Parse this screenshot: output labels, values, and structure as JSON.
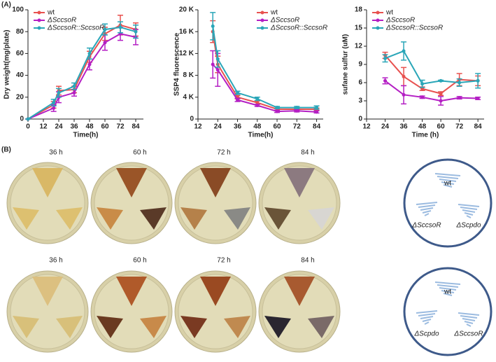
{
  "panels": [
    "(A)",
    "(B)"
  ],
  "chart_data": [
    {
      "type": "line",
      "y_label": "Dry weight(mg/plate)",
      "x_label": "Time(h)",
      "xlim": [
        0,
        90
      ],
      "xticks": [
        0,
        12,
        24,
        36,
        48,
        60,
        72,
        84
      ],
      "ylim": [
        0,
        100
      ],
      "yticks": [
        0,
        20,
        40,
        60,
        80,
        100
      ],
      "legend": "top-left",
      "x": [
        0,
        20,
        24,
        36,
        48,
        60,
        72,
        84
      ],
      "series": [
        {
          "name": "wt",
          "color": "#e8514f",
          "values": [
            0,
            13,
            26,
            27,
            57,
            78,
            86,
            82
          ],
          "errors": [
            0,
            3,
            4,
            3,
            5,
            6,
            9,
            6
          ]
        },
        {
          "name": "ΔSccsoR",
          "color": "#b41fc4",
          "values": [
            0,
            10,
            20,
            24,
            50,
            70,
            78,
            75
          ],
          "errors": [
            0,
            3,
            5,
            3,
            5,
            7,
            6,
            7
          ]
        },
        {
          "name": "ΔSccsoR::SccsoR",
          "color": "#2aa6b8",
          "values": [
            0,
            15,
            24,
            30,
            60,
            82,
            84,
            80
          ],
          "errors": [
            0,
            3,
            4,
            3,
            5,
            5,
            5,
            6
          ]
        }
      ]
    },
    {
      "type": "line",
      "y_label": "SSP4 fluorescence",
      "x_label": "Time(h)",
      "xlim": [
        12,
        88
      ],
      "xticks": [
        12,
        24,
        36,
        48,
        60,
        72,
        84
      ],
      "ylim": [
        0,
        20000
      ],
      "yticks": [
        0,
        {
          "value": 4000,
          "label": "4 K"
        },
        {
          "value": 8000,
          "label": "8 K"
        },
        {
          "value": 12000,
          "label": "12 K"
        },
        {
          "value": 16000,
          "label": "16 K"
        },
        {
          "value": 20000,
          "label": "20 K"
        }
      ],
      "legend": "top-right",
      "x": [
        21,
        24,
        36,
        48,
        60,
        72,
        84
      ],
      "series": [
        {
          "name": "wt",
          "color": "#e8514f",
          "values": [
            16000,
            10000,
            4000,
            3000,
            1800,
            1800,
            1800
          ],
          "errors": [
            2000,
            1500,
            300,
            300,
            200,
            200,
            200
          ]
        },
        {
          "name": "ΔSccsoR",
          "color": "#b41fc4",
          "values": [
            10000,
            9000,
            3500,
            2500,
            1400,
            1500,
            1300
          ],
          "errors": [
            2500,
            3000,
            300,
            200,
            200,
            200,
            200
          ]
        },
        {
          "name": "ΔSccsoR::SccsoR",
          "color": "#2aa6b8",
          "values": [
            17000,
            11000,
            4800,
            3700,
            2100,
            2100,
            2100
          ],
          "errors": [
            2500,
            1500,
            300,
            300,
            200,
            200,
            300
          ]
        }
      ]
    },
    {
      "type": "line",
      "y_label": "sufane sulfur (uM)",
      "x_label": "Time (h)",
      "xlim": [
        12,
        88
      ],
      "xticks": [
        12,
        24,
        36,
        48,
        60,
        72,
        84
      ],
      "ylim": [
        0,
        18
      ],
      "yticks": [
        0,
        3,
        6,
        9,
        12,
        15,
        18
      ],
      "legend": "top-left",
      "x": [
        24,
        36,
        48,
        60,
        72,
        84
      ],
      "series": [
        {
          "name": "wt",
          "color": "#e8514f",
          "values": [
            10.5,
            7,
            5,
            4.2,
            6.5,
            6.3
          ],
          "errors": [
            0.5,
            1.5,
            0.3,
            0.3,
            1,
            0.8
          ]
        },
        {
          "name": "ΔSccsoR",
          "color": "#b41fc4",
          "values": [
            6.3,
            4,
            3.6,
            3,
            3.5,
            3.4
          ],
          "errors": [
            0.5,
            1.5,
            0.2,
            0.7,
            0.2,
            0.2
          ]
        },
        {
          "name": "ΔSccsoR::SccsoR",
          "color": "#2aa6b8",
          "values": [
            10,
            11.2,
            5.8,
            6.3,
            6,
            6.3
          ],
          "errors": [
            0.6,
            1.5,
            0.6,
            0.1,
            0.6,
            1.2
          ]
        }
      ]
    }
  ],
  "plates": {
    "rows": [
      {
        "times": [
          "36 h",
          "60 h",
          "72 h",
          "84 h"
        ],
        "diagram": {
          "top": "wt",
          "left": "ΔSccsoR",
          "right": "ΔScpdo"
        }
      },
      {
        "times": [
          "36 h",
          "60 h",
          "72 h",
          "84 h"
        ],
        "diagram": {
          "top": "wt",
          "left": "ΔScpdo",
          "right": "ΔSccsoR"
        }
      }
    ]
  }
}
